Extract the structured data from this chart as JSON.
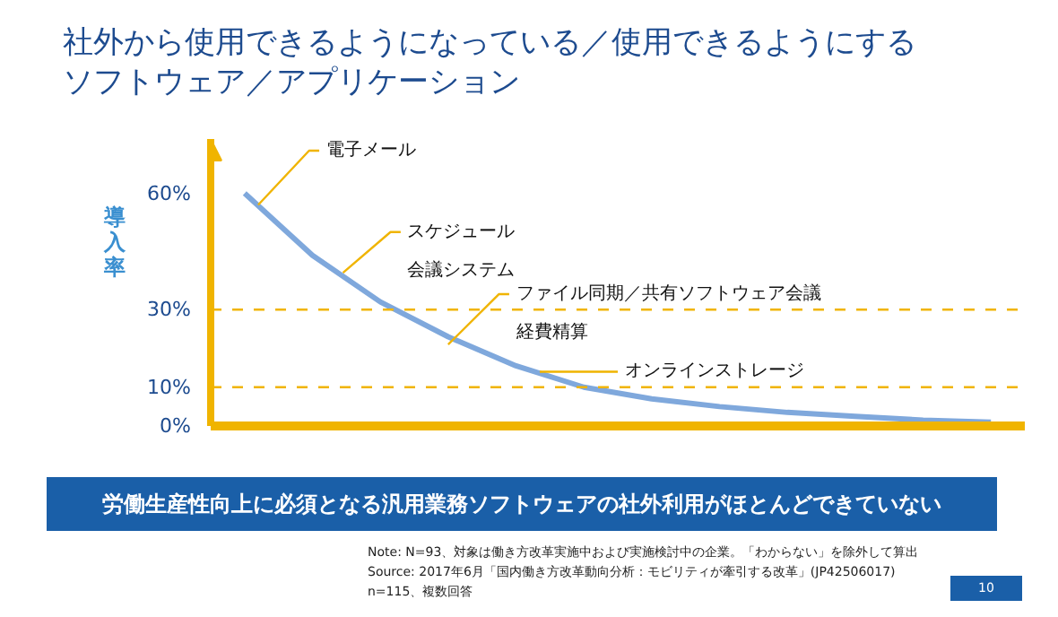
{
  "chart_data": {
    "type": "line",
    "title": "社外から使用できるようになっている／使用できるようにするソフトウェア／アプリケーション",
    "ylabel": "導入率",
    "categories": [
      null,
      null,
      null,
      null,
      null,
      null,
      null,
      null,
      null,
      null,
      null,
      null
    ],
    "series": [
      {
        "color": "#7fa8dc",
        "values": [
          60,
          44,
          32,
          23,
          15.5,
          10,
          7,
          5,
          3.5,
          2.5,
          1.5,
          1
        ]
      }
    ],
    "ylim": [
      0,
      74
    ],
    "yticks": [
      {
        "value": 0,
        "label": "0%"
      },
      {
        "value": 10,
        "label": "10%"
      },
      {
        "value": 30,
        "label": "30%"
      },
      {
        "value": 60,
        "label": "60%"
      }
    ],
    "tick_labels": "y",
    "grid": false,
    "ref_lines": [
      {
        "axis": "y",
        "value": 30,
        "color": "#f0b400",
        "line_style": "dashed"
      },
      {
        "axis": "y",
        "value": 10,
        "color": "#f0b400",
        "line_style": "dashed"
      }
    ],
    "annotations": [
      "電子メール",
      "スケジュール",
      "会議システム",
      "ファイル同期／共有ソフトウェア会議",
      "経費精算",
      "オンラインストレージ",
      "労働生産性向上に必須となる汎用業務ソフトウェアの社外利用がほとんどできていない",
      "Note: N=93、対象は働き方改革実施中および実施検討中の企業。「わからない」を除外して算出",
      "Source: 2017年6月「国内働き方改革動向分析：モビリティが牽引する改革」(JP42506017)",
      "n=115、複数回答",
      "10"
    ]
  }
}
